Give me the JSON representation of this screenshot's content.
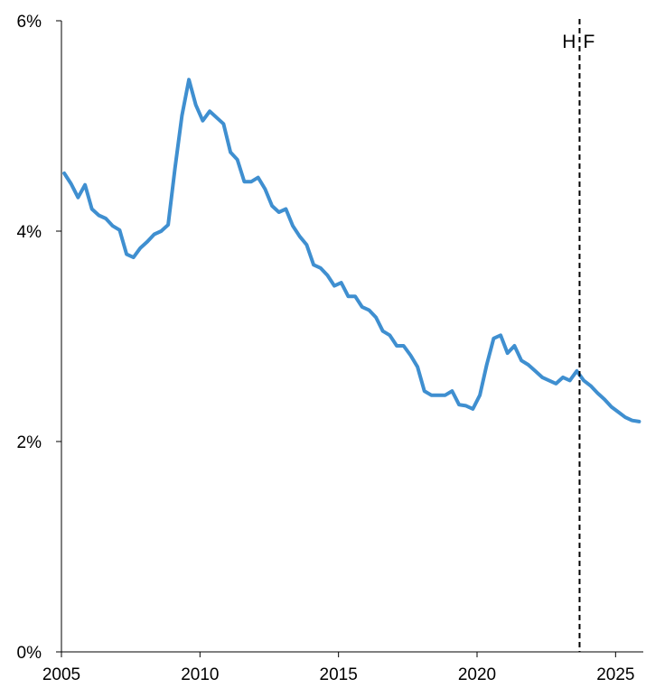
{
  "chart_data": {
    "type": "line",
    "title": "",
    "xlabel": "",
    "ylabel": "",
    "xlim": [
      2005,
      2026.0
    ],
    "ylim": [
      0,
      6
    ],
    "grid": false,
    "legend": "none",
    "x_ticks": [
      2005,
      2010,
      2015,
      2020,
      2025
    ],
    "x_tick_labels": [
      "2005",
      "2010",
      "2015",
      "2020",
      "2025"
    ],
    "y_ticks": [
      0,
      2,
      4,
      6
    ],
    "y_tick_labels": [
      "0%",
      "2%",
      "4%",
      "6%"
    ],
    "series": [
      {
        "color": "#3f8fd0",
        "points": [
          [
            2005.1,
            4.55
          ],
          [
            2005.35,
            4.45
          ],
          [
            2005.6,
            4.32
          ],
          [
            2005.85,
            4.44
          ],
          [
            2006.1,
            4.21
          ],
          [
            2006.35,
            4.15
          ],
          [
            2006.6,
            4.12
          ],
          [
            2006.85,
            4.05
          ],
          [
            2007.1,
            4.01
          ],
          [
            2007.35,
            3.78
          ],
          [
            2007.6,
            3.75
          ],
          [
            2007.85,
            3.84
          ],
          [
            2008.1,
            3.9
          ],
          [
            2008.35,
            3.97
          ],
          [
            2008.6,
            4.0
          ],
          [
            2008.85,
            4.06
          ],
          [
            2009.1,
            4.6
          ],
          [
            2009.35,
            5.1
          ],
          [
            2009.6,
            5.44
          ],
          [
            2009.85,
            5.2
          ],
          [
            2010.1,
            5.05
          ],
          [
            2010.35,
            5.14
          ],
          [
            2010.6,
            5.08
          ],
          [
            2010.85,
            5.02
          ],
          [
            2011.1,
            4.75
          ],
          [
            2011.35,
            4.68
          ],
          [
            2011.6,
            4.47
          ],
          [
            2011.85,
            4.47
          ],
          [
            2012.1,
            4.51
          ],
          [
            2012.35,
            4.4
          ],
          [
            2012.6,
            4.24
          ],
          [
            2012.85,
            4.18
          ],
          [
            2013.1,
            4.21
          ],
          [
            2013.35,
            4.05
          ],
          [
            2013.6,
            3.95
          ],
          [
            2013.85,
            3.87
          ],
          [
            2014.1,
            3.68
          ],
          [
            2014.35,
            3.65
          ],
          [
            2014.6,
            3.58
          ],
          [
            2014.85,
            3.48
          ],
          [
            2015.1,
            3.51
          ],
          [
            2015.35,
            3.38
          ],
          [
            2015.6,
            3.38
          ],
          [
            2015.85,
            3.28
          ],
          [
            2016.1,
            3.25
          ],
          [
            2016.35,
            3.18
          ],
          [
            2016.6,
            3.05
          ],
          [
            2016.85,
            3.01
          ],
          [
            2017.1,
            2.91
          ],
          [
            2017.35,
            2.91
          ],
          [
            2017.6,
            2.82
          ],
          [
            2017.85,
            2.71
          ],
          [
            2018.1,
            2.48
          ],
          [
            2018.35,
            2.44
          ],
          [
            2018.6,
            2.44
          ],
          [
            2018.85,
            2.44
          ],
          [
            2019.1,
            2.48
          ],
          [
            2019.35,
            2.35
          ],
          [
            2019.6,
            2.34
          ],
          [
            2019.85,
            2.31
          ],
          [
            2020.1,
            2.44
          ],
          [
            2020.35,
            2.73
          ],
          [
            2020.6,
            2.98
          ],
          [
            2020.85,
            3.01
          ],
          [
            2021.1,
            2.84
          ],
          [
            2021.35,
            2.91
          ],
          [
            2021.6,
            2.77
          ],
          [
            2021.85,
            2.73
          ],
          [
            2022.1,
            2.67
          ],
          [
            2022.35,
            2.61
          ],
          [
            2022.6,
            2.58
          ],
          [
            2022.85,
            2.55
          ],
          [
            2023.1,
            2.61
          ],
          [
            2023.35,
            2.58
          ],
          [
            2023.6,
            2.67
          ],
          [
            2023.85,
            2.58
          ],
          [
            2024.1,
            2.53
          ],
          [
            2024.35,
            2.46
          ],
          [
            2024.6,
            2.4
          ],
          [
            2024.85,
            2.33
          ],
          [
            2025.1,
            2.28
          ],
          [
            2025.35,
            2.23
          ],
          [
            2025.6,
            2.2
          ],
          [
            2025.85,
            2.19
          ]
        ]
      }
    ],
    "annotations": [
      {
        "type": "vertical-dashed-line",
        "x": 2023.7,
        "labels": [
          "H",
          "F"
        ]
      }
    ]
  }
}
